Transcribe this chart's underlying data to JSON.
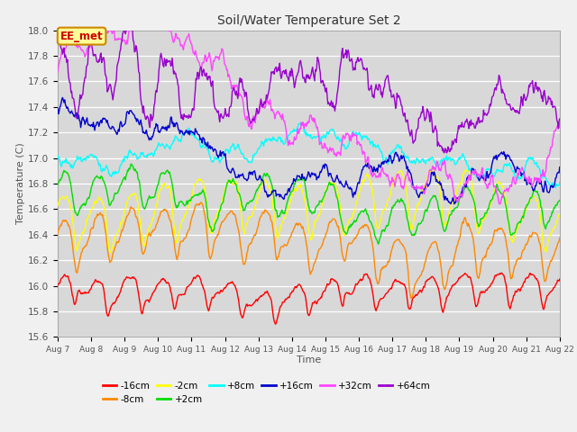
{
  "title": "Soil/Water Temperature Set 2",
  "xlabel": "Time",
  "ylabel": "Temperature (C)",
  "ylim": [
    15.6,
    18.0
  ],
  "x_tick_labels": [
    "Aug 7",
    "Aug 8",
    "Aug 9",
    "Aug 10",
    "Aug 11",
    "Aug 12",
    "Aug 13",
    "Aug 14",
    "Aug 15",
    "Aug 16",
    "Aug 17",
    "Aug 18",
    "Aug 19",
    "Aug 20",
    "Aug 21",
    "Aug 22"
  ],
  "series": [
    {
      "label": "-16cm",
      "color": "#ff0000"
    },
    {
      "label": "-8cm",
      "color": "#ff8800"
    },
    {
      "label": "-2cm",
      "color": "#ffff00"
    },
    {
      "label": "+2cm",
      "color": "#00dd00"
    },
    {
      "label": "+8cm",
      "color": "#00ffff"
    },
    {
      "label": "+16cm",
      "color": "#0000cc"
    },
    {
      "label": "+32cm",
      "color": "#ff44ff"
    },
    {
      "label": "+64cm",
      "color": "#9900cc"
    }
  ],
  "annotation_text": "EE_met",
  "annotation_color": "#cc0000",
  "annotation_bg": "#ffff99",
  "annotation_border": "#cc8800",
  "bg_color": "#d8d8d8",
  "grid_color": "#ffffff",
  "title_color": "#333333"
}
